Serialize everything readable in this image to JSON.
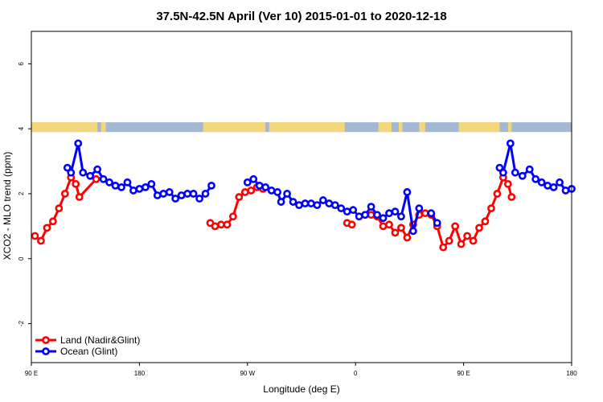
{
  "chart_data": {
    "type": "line",
    "title": "37.5N-42.5N April (Ver 10)   2015-01-01 to 2020-12-18",
    "xlabel": "Longitude (deg E)",
    "ylabel": "XCO2 - MLO trend (ppm)",
    "xlim": [
      90,
      540
    ],
    "ylim": [
      -3.2,
      7
    ],
    "x_ticks": [
      {
        "value": 90,
        "label": "90 E"
      },
      {
        "value": 180,
        "label": "180"
      },
      {
        "value": 270,
        "label": "90 W"
      },
      {
        "value": 360,
        "label": "0"
      },
      {
        "value": 450,
        "label": "90 E"
      },
      {
        "value": 540,
        "label": "180"
      }
    ],
    "y_ticks": [
      {
        "value": -2,
        "label": "-2"
      },
      {
        "value": 0,
        "label": "0"
      },
      {
        "value": 2,
        "label": "2"
      },
      {
        "value": 4,
        "label": "4"
      },
      {
        "value": 6,
        "label": "6"
      }
    ],
    "land_strip": {
      "ocean_color": "#a2b8d4",
      "land_color": "#f3d77a",
      "y_range": [
        3.9,
        4.2
      ],
      "land_segments": [
        [
          90,
          145
        ],
        [
          148,
          152
        ],
        [
          233,
          285
        ],
        [
          288,
          351
        ],
        [
          379,
          390
        ],
        [
          396,
          399
        ],
        [
          413,
          418
        ],
        [
          446,
          480
        ],
        [
          487,
          490
        ]
      ]
    },
    "series": [
      {
        "name": "Land (Nadir&Glint)",
        "color": "#ff0000",
        "points": [
          [
            93,
            0.7
          ],
          [
            98,
            0.55
          ],
          [
            103,
            0.95
          ],
          [
            108,
            1.15
          ],
          [
            113,
            1.55
          ],
          [
            118,
            2.0
          ],
          [
            123,
            2.5
          ],
          [
            127,
            2.3
          ],
          [
            130,
            1.9
          ],
          [
            144,
            2.45
          ],
          null,
          [
            239,
            1.1
          ],
          [
            243,
            1.0
          ],
          [
            248,
            1.05
          ],
          [
            253,
            1.05
          ],
          [
            258,
            1.3
          ],
          [
            263,
            1.9
          ],
          [
            268,
            2.05
          ],
          [
            273,
            2.1
          ],
          [
            278,
            2.2
          ],
          [
            283,
            2.15
          ],
          null,
          [
            353,
            1.1
          ],
          [
            357,
            1.05
          ],
          null,
          [
            368,
            1.35
          ],
          [
            373,
            1.35
          ],
          [
            378,
            1.3
          ],
          [
            383,
            1.0
          ],
          [
            388,
            1.05
          ],
          [
            393,
            0.8
          ],
          [
            398,
            0.95
          ],
          [
            403,
            0.65
          ],
          [
            408,
            1.05
          ],
          [
            413,
            1.35
          ],
          [
            418,
            1.4
          ],
          [
            423,
            1.35
          ],
          [
            428,
            1.0
          ],
          [
            433,
            0.35
          ],
          [
            438,
            0.55
          ],
          [
            443,
            1.0
          ],
          [
            448,
            0.45
          ],
          [
            453,
            0.7
          ],
          [
            458,
            0.55
          ],
          [
            463,
            0.95
          ],
          [
            468,
            1.15
          ],
          [
            473,
            1.55
          ],
          [
            478,
            2.0
          ],
          [
            483,
            2.5
          ],
          [
            487,
            2.3
          ],
          [
            490,
            1.9
          ]
        ]
      },
      {
        "name": "Ocean (Glint)",
        "color": "#0000ff",
        "points": [
          [
            120,
            2.8
          ],
          [
            123,
            2.65
          ],
          [
            129,
            3.55
          ],
          [
            133,
            2.65
          ],
          [
            139,
            2.55
          ],
          [
            145,
            2.75
          ],
          [
            150,
            2.45
          ],
          [
            155,
            2.35
          ],
          [
            160,
            2.25
          ],
          [
            165,
            2.2
          ],
          [
            170,
            2.35
          ],
          [
            175,
            2.1
          ],
          [
            180,
            2.15
          ],
          [
            185,
            2.2
          ],
          [
            190,
            2.3
          ],
          [
            195,
            1.95
          ],
          [
            200,
            2.0
          ],
          [
            205,
            2.05
          ],
          [
            210,
            1.85
          ],
          [
            215,
            1.95
          ],
          [
            220,
            2.0
          ],
          [
            225,
            2.0
          ],
          [
            230,
            1.85
          ],
          [
            235,
            2.0
          ],
          [
            240,
            2.25
          ],
          null,
          [
            270,
            2.35
          ],
          [
            275,
            2.45
          ],
          [
            280,
            2.25
          ],
          [
            285,
            2.2
          ],
          [
            290,
            2.1
          ],
          [
            295,
            2.05
          ],
          [
            298,
            1.75
          ],
          [
            303,
            2.0
          ],
          [
            308,
            1.75
          ],
          [
            313,
            1.65
          ],
          [
            318,
            1.7
          ],
          [
            323,
            1.7
          ],
          [
            328,
            1.65
          ],
          [
            333,
            1.8
          ],
          [
            338,
            1.7
          ],
          [
            343,
            1.65
          ],
          [
            348,
            1.55
          ],
          [
            353,
            1.45
          ],
          [
            358,
            1.5
          ],
          [
            363,
            1.3
          ],
          [
            368,
            1.35
          ],
          [
            373,
            1.6
          ],
          [
            378,
            1.35
          ],
          [
            383,
            1.25
          ],
          [
            388,
            1.4
          ],
          [
            393,
            1.45
          ],
          [
            398,
            1.3
          ],
          [
            403,
            2.05
          ],
          [
            408,
            0.85
          ],
          [
            413,
            1.55
          ],
          null,
          [
            423,
            1.4
          ],
          [
            428,
            1.1
          ],
          null,
          [
            480,
            2.8
          ],
          [
            483,
            2.65
          ],
          [
            489,
            3.55
          ],
          [
            493,
            2.65
          ],
          [
            499,
            2.55
          ],
          [
            505,
            2.75
          ],
          [
            510,
            2.45
          ],
          [
            515,
            2.35
          ],
          [
            520,
            2.25
          ],
          [
            525,
            2.2
          ],
          [
            530,
            2.35
          ],
          [
            535,
            2.1
          ],
          [
            540,
            2.15
          ]
        ]
      }
    ]
  }
}
